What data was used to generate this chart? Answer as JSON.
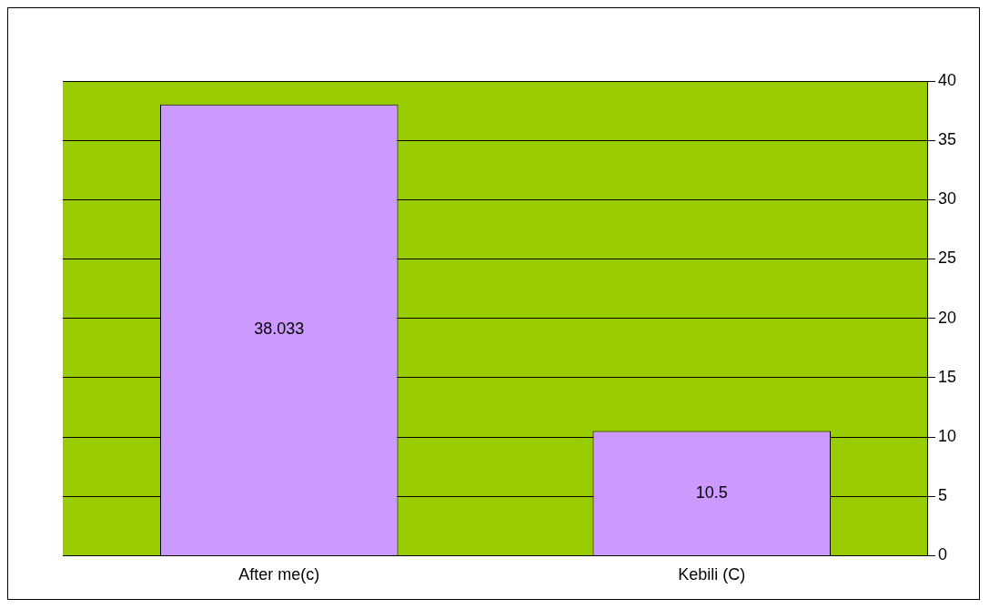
{
  "chart_data": {
    "type": "bar",
    "categories": [
      "After me(c)",
      "Kebili (C)"
    ],
    "values": [
      38.033,
      10.5
    ],
    "color": "#cc99ff",
    "ylim": [
      0,
      40
    ],
    "yticks": [
      0,
      5,
      10,
      15,
      20,
      25,
      30,
      35,
      40
    ],
    "grid": "y",
    "data_labels": true
  }
}
